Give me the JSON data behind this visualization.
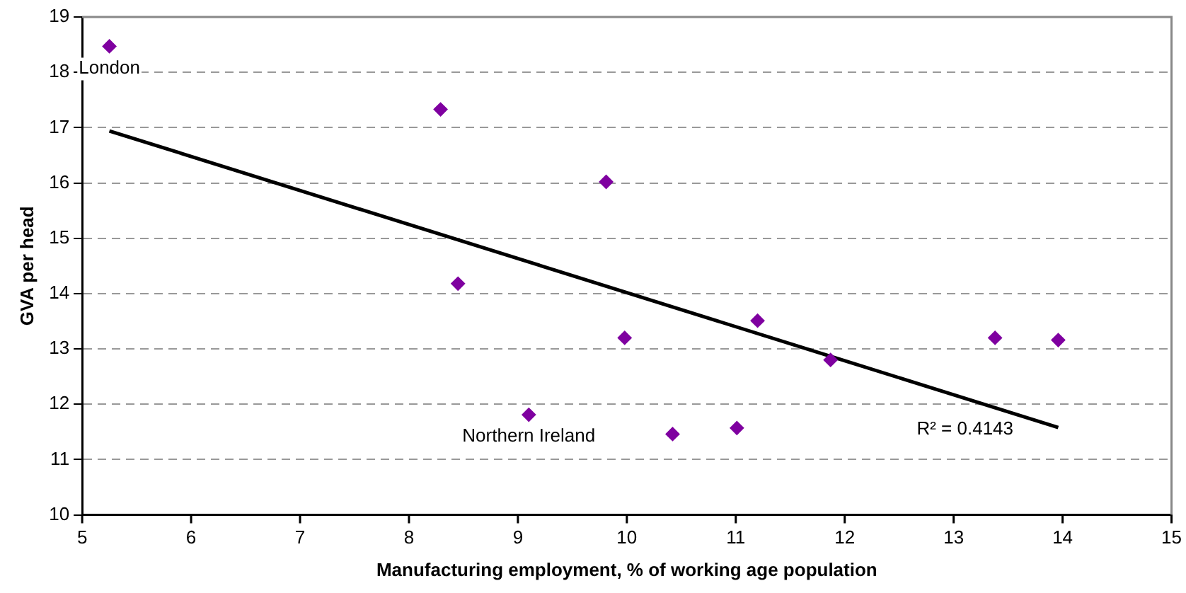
{
  "chart_data": {
    "type": "scatter",
    "xlabel": "Manufacturing employment, % of working age population",
    "ylabel": "GVA per head",
    "xlim": [
      5,
      15
    ],
    "xticks": [
      5,
      6,
      7,
      8,
      9,
      10,
      11,
      12,
      13,
      14,
      15
    ],
    "ylim": [
      10,
      19
    ],
    "yticks": [
      10,
      11,
      12,
      13,
      14,
      15,
      16,
      17,
      18,
      19
    ],
    "grid": "y",
    "legend": false,
    "marker": "diamond",
    "series": [
      {
        "color": "#7f00a0",
        "x": [
          5.25,
          8.29,
          8.45,
          9.1,
          9.81,
          9.98,
          10.42,
          11.01,
          11.2,
          11.87,
          13.38,
          13.96
        ],
        "values": [
          18.47,
          17.33,
          14.18,
          11.81,
          16.02,
          13.2,
          11.46,
          11.57,
          13.51,
          12.8,
          13.2,
          13.16
        ]
      },
      {
        "type": "line",
        "color": "#000000",
        "marker": "none",
        "x": [
          5.25,
          13.96
        ],
        "values": [
          16.94,
          11.58
        ]
      }
    ],
    "annotations": [
      {
        "text": "London",
        "x": 5.25,
        "y": 18.47
      },
      {
        "text": "Northern Ireland",
        "x": 9.1,
        "y": 11.81
      },
      "R² = 0.4143"
    ]
  }
}
